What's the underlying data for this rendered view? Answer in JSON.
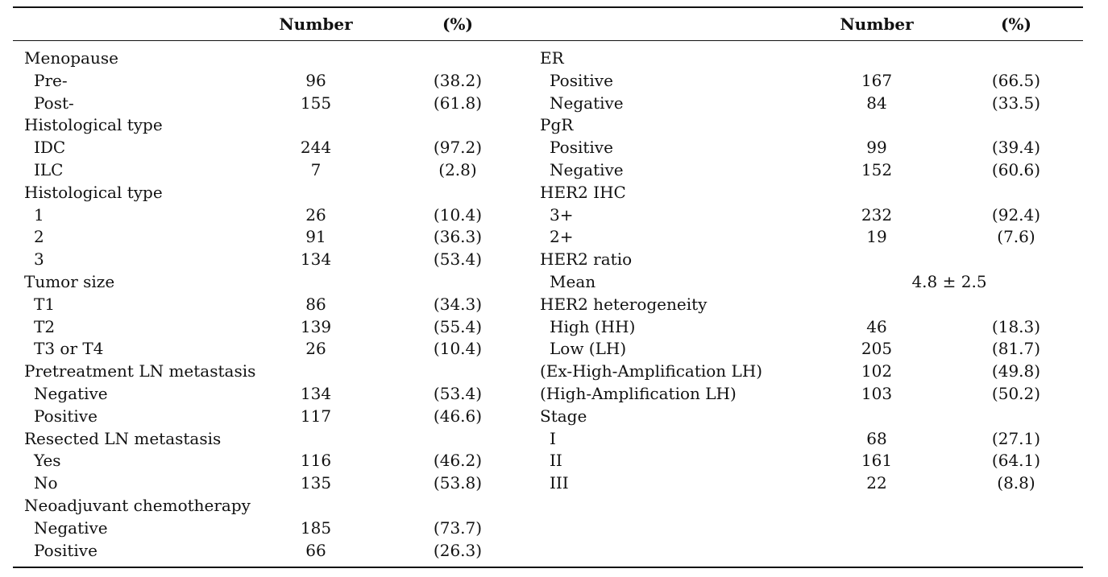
{
  "header": {
    "left_number": "Number",
    "left_pct": "(%)",
    "right_number": "Number",
    "right_pct": "(%)"
  },
  "rows": [
    {
      "l_label": "Menopause",
      "l_ind": false,
      "l_num": "",
      "l_pct": "",
      "r_label": "ER",
      "r_ind": false,
      "r_num": "",
      "r_pct": ""
    },
    {
      "l_label": "Pre-",
      "l_ind": true,
      "l_num": "96",
      "l_pct": "(38.2)",
      "r_label": "Positive",
      "r_ind": true,
      "r_num": "167",
      "r_pct": "(66.5)"
    },
    {
      "l_label": "Post-",
      "l_ind": true,
      "l_num": "155",
      "l_pct": "(61.8)",
      "r_label": "Negative",
      "r_ind": true,
      "r_num": "84",
      "r_pct": "(33.5)"
    },
    {
      "l_label": "Histological type",
      "l_ind": false,
      "l_num": "",
      "l_pct": "",
      "r_label": "PgR",
      "r_ind": false,
      "r_num": "",
      "r_pct": ""
    },
    {
      "l_label": "IDC",
      "l_ind": true,
      "l_num": "244",
      "l_pct": "(97.2)",
      "r_label": "Positive",
      "r_ind": true,
      "r_num": "99",
      "r_pct": "(39.4)"
    },
    {
      "l_label": "ILC",
      "l_ind": true,
      "l_num": "7",
      "l_pct": "(2.8)",
      "r_label": "Negative",
      "r_ind": true,
      "r_num": "152",
      "r_pct": "(60.6)"
    },
    {
      "l_label": "Histological type",
      "l_ind": false,
      "l_num": "",
      "l_pct": "",
      "r_label": "HER2 IHC",
      "r_ind": false,
      "r_num": "",
      "r_pct": ""
    },
    {
      "l_label": "1",
      "l_ind": true,
      "l_num": "26",
      "l_pct": "(10.4)",
      "r_label": "3+",
      "r_ind": true,
      "r_num": "232",
      "r_pct": "(92.4)"
    },
    {
      "l_label": "2",
      "l_ind": true,
      "l_num": "91",
      "l_pct": "(36.3)",
      "r_label": "2+",
      "r_ind": true,
      "r_num": "19",
      "r_pct": "(7.6)"
    },
    {
      "l_label": "3",
      "l_ind": true,
      "l_num": "134",
      "l_pct": "(53.4)",
      "r_label": "HER2 ratio",
      "r_ind": false,
      "r_num": "",
      "r_pct": ""
    },
    {
      "l_label": "Tumor size",
      "l_ind": false,
      "l_num": "",
      "l_pct": "",
      "r_label": "Mean",
      "r_ind": true,
      "r_span": "4.8 ± 2.5"
    },
    {
      "l_label": "T1",
      "l_ind": true,
      "l_num": "86",
      "l_pct": "(34.3)",
      "r_label": "HER2 heterogeneity",
      "r_ind": false,
      "r_num": "",
      "r_pct": ""
    },
    {
      "l_label": "T2",
      "l_ind": true,
      "l_num": "139",
      "l_pct": "(55.4)",
      "r_label": "High (HH)",
      "r_ind": true,
      "r_num": "46",
      "r_pct": "(18.3)"
    },
    {
      "l_label": "T3 or T4",
      "l_ind": true,
      "l_num": "26",
      "l_pct": "(10.4)",
      "r_label": "Low (LH)",
      "r_ind": true,
      "r_num": "205",
      "r_pct": "(81.7)"
    },
    {
      "l_label": "Pretreatment LN metastasis",
      "l_ind": false,
      "l_num": "",
      "l_pct": "",
      "r_label": "(Ex-High-Amplification LH)",
      "r_ind": false,
      "r_num": "102",
      "r_pct": "(49.8)"
    },
    {
      "l_label": "Negative",
      "l_ind": true,
      "l_num": "134",
      "l_pct": "(53.4)",
      "r_label": "(High-Amplification LH)",
      "r_ind": false,
      "r_num": "103",
      "r_pct": "(50.2)"
    },
    {
      "l_label": "Positive",
      "l_ind": true,
      "l_num": "117",
      "l_pct": "(46.6)",
      "r_label": "Stage",
      "r_ind": false,
      "r_num": "",
      "r_pct": ""
    },
    {
      "l_label": "Resected LN metastasis",
      "l_ind": false,
      "l_num": "",
      "l_pct": "",
      "r_label": "I",
      "r_ind": true,
      "r_num": "68",
      "r_pct": "(27.1)"
    },
    {
      "l_label": "Yes",
      "l_ind": true,
      "l_num": "116",
      "l_pct": "(46.2)",
      "r_label": "II",
      "r_ind": true,
      "r_num": "161",
      "r_pct": "(64.1)"
    },
    {
      "l_label": "No",
      "l_ind": true,
      "l_num": "135",
      "l_pct": "(53.8)",
      "r_label": "III",
      "r_ind": true,
      "r_num": "22",
      "r_pct": "(8.8)"
    },
    {
      "l_label": "Neoadjuvant chemotherapy",
      "l_ind": false,
      "l_num": "",
      "l_pct": "",
      "r_label": "",
      "r_ind": false,
      "r_num": "",
      "r_pct": ""
    },
    {
      "l_label": "Negative",
      "l_ind": true,
      "l_num": "185",
      "l_pct": "(73.7)",
      "r_label": "",
      "r_ind": false,
      "r_num": "",
      "r_pct": ""
    },
    {
      "l_label": "Positive",
      "l_ind": true,
      "l_num": "66",
      "l_pct": "(26.3)",
      "r_label": "",
      "r_ind": false,
      "r_num": "",
      "r_pct": ""
    }
  ]
}
